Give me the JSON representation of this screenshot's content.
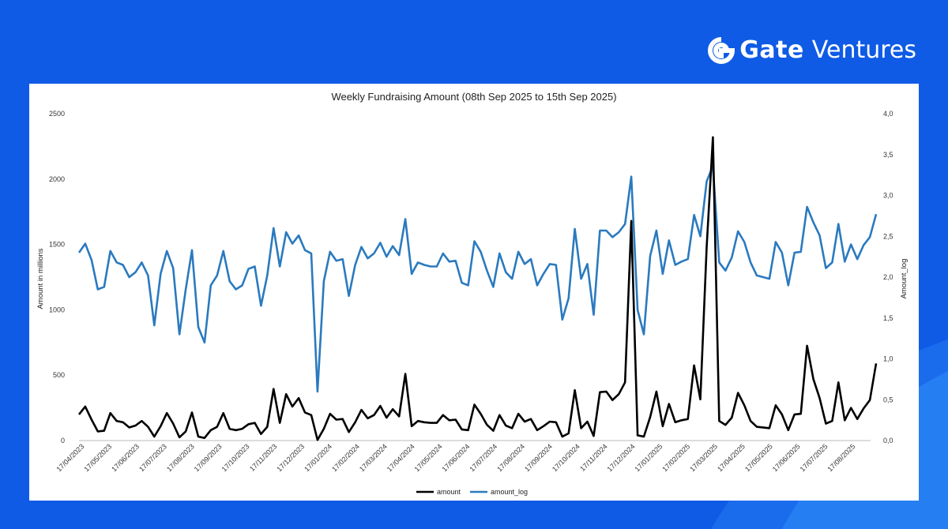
{
  "brand": {
    "name_bold": "Gate",
    "name_light": "Ventures",
    "logo": "gate-logo-icon"
  },
  "colors": {
    "background": "#0f5be6",
    "amount": "#000000",
    "amount_log": "#2a7abf"
  },
  "chart_data": {
    "type": "line",
    "title": "Weekly Fundraising Amount (08th Sep 2025 to 15th Sep 2025)",
    "ylabel": "Amount in millions",
    "y2label": "Amount_log",
    "ylim": [
      0,
      2500
    ],
    "y2lim": [
      0,
      4
    ],
    "yticks": [
      "0",
      "500",
      "1000",
      "1500",
      "2000",
      "2500"
    ],
    "y2ticks": [
      "0,0",
      "0,5",
      "1,0",
      "1,5",
      "2,0",
      "2,5",
      "3,0",
      "3,5",
      "4,0"
    ],
    "xticks": [
      "17/04/2023",
      "17/05/2023",
      "17/06/2023",
      "17/07/2023",
      "17/08/2023",
      "17/09/2023",
      "17/10/2023",
      "17/11/2023",
      "17/12/2023",
      "17/01/2024",
      "17/02/2024",
      "17/03/2024",
      "17/04/2024",
      "17/05/2024",
      "17/06/2024",
      "17/07/2024",
      "17/08/2024",
      "17/09/2024",
      "17/10/2024",
      "17/11/2024",
      "17/12/2024",
      "17/01/2025",
      "17/02/2025",
      "17/03/2025",
      "17/04/2025",
      "17/05/2025",
      "17/06/2025",
      "17/07/2025",
      "17/08/2025"
    ],
    "grid": false,
    "legend_position": "bottom",
    "series": [
      {
        "name": "amount",
        "axis": "left",
        "values": [
          200,
          260,
          160,
          70,
          75,
          210,
          150,
          140,
          100,
          115,
          150,
          105,
          30,
          110,
          210,
          130,
          25,
          70,
          215,
          30,
          20,
          80,
          105,
          210,
          90,
          80,
          90,
          125,
          135,
          50,
          105,
          395,
          135,
          355,
          260,
          325,
          215,
          195,
          5,
          90,
          205,
          160,
          165,
          65,
          140,
          235,
          170,
          195,
          265,
          175,
          240,
          185,
          510,
          110,
          150,
          140,
          135,
          135,
          195,
          155,
          160,
          85,
          80,
          275,
          205,
          120,
          75,
          195,
          115,
          95,
          205,
          145,
          165,
          80,
          110,
          145,
          140,
          30,
          55,
          385,
          95,
          145,
          35,
          370,
          375,
          310,
          355,
          445,
          1680,
          40,
          30,
          180,
          375,
          110,
          280,
          140,
          155,
          165,
          575,
          315,
          1480,
          2320,
          150,
          120,
          175,
          365,
          270,
          150,
          105,
          100,
          95,
          270,
          200,
          80,
          200,
          205,
          725,
          470,
          325,
          130,
          150,
          445,
          155,
          250,
          165,
          245,
          310,
          590
        ]
      },
      {
        "name": "amount_log",
        "axis": "right",
        "values": [
          2.3,
          2.41,
          2.21,
          1.85,
          1.88,
          2.32,
          2.18,
          2.15,
          2.0,
          2.06,
          2.18,
          2.02,
          1.41,
          2.04,
          2.32,
          2.11,
          1.3,
          1.85,
          2.33,
          1.39,
          1.2,
          1.9,
          2.02,
          2.32,
          1.95,
          1.85,
          1.9,
          2.1,
          2.13,
          1.65,
          2.02,
          2.6,
          2.13,
          2.55,
          2.41,
          2.51,
          2.33,
          2.29,
          0.6,
          1.95,
          2.31,
          2.2,
          2.22,
          1.77,
          2.15,
          2.37,
          2.23,
          2.29,
          2.42,
          2.25,
          2.38,
          2.27,
          2.71,
          2.04,
          2.18,
          2.15,
          2.13,
          2.13,
          2.29,
          2.19,
          2.2,
          1.93,
          1.9,
          2.44,
          2.31,
          2.08,
          1.88,
          2.29,
          2.06,
          1.98,
          2.31,
          2.16,
          2.22,
          1.9,
          2.04,
          2.16,
          2.15,
          1.48,
          1.74,
          2.59,
          1.98,
          2.16,
          1.54,
          2.57,
          2.57,
          2.49,
          2.55,
          2.65,
          3.23,
          1.6,
          1.3,
          2.26,
          2.57,
          2.04,
          2.45,
          2.15,
          2.19,
          2.22,
          2.76,
          2.5,
          3.17,
          3.36,
          2.18,
          2.08,
          2.24,
          2.56,
          2.43,
          2.18,
          2.02,
          2.0,
          1.98,
          2.43,
          2.3,
          1.9,
          2.3,
          2.31,
          2.86,
          2.67,
          2.51,
          2.11,
          2.18,
          2.65,
          2.19,
          2.4,
          2.22,
          2.39,
          2.49,
          2.77
        ]
      }
    ]
  }
}
